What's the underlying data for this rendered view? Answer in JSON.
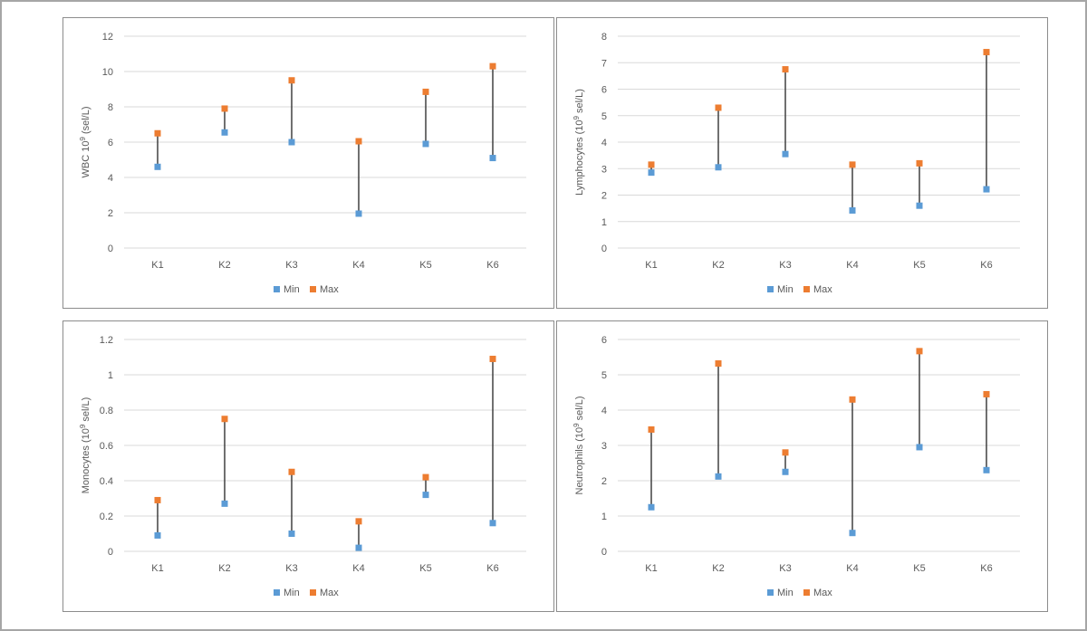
{
  "chart_data": [
    {
      "type": "scatter",
      "ylabel_main": "WBC 10",
      "ylabel_sup": "9",
      "ylabel_tail": " (sel/L)",
      "categories": [
        "K1",
        "K2",
        "K3",
        "K4",
        "K5",
        "K6"
      ],
      "ylim": [
        0,
        12
      ],
      "yticks": [
        "0",
        "2",
        "4",
        "6",
        "8",
        "10",
        "12"
      ],
      "series": [
        {
          "name": "Min",
          "values": [
            4.6,
            6.55,
            6.0,
            1.95,
            5.9,
            5.1
          ],
          "color": "#5b9bd5"
        },
        {
          "name": "Max",
          "values": [
            6.5,
            7.9,
            9.5,
            6.05,
            8.85,
            10.3
          ],
          "color": "#ed7d31"
        }
      ]
    },
    {
      "type": "scatter",
      "ylabel_main": "Lymphocytes (10",
      "ylabel_sup": "9",
      "ylabel_tail": " sel/L)",
      "categories": [
        "K1",
        "K2",
        "K3",
        "K4",
        "K5",
        "K6"
      ],
      "ylim": [
        0,
        8
      ],
      "yticks": [
        "0",
        "1",
        "2",
        "3",
        "4",
        "5",
        "6",
        "7",
        "8"
      ],
      "series": [
        {
          "name": "Min",
          "values": [
            2.85,
            3.05,
            3.55,
            1.42,
            1.6,
            2.22
          ],
          "color": "#5b9bd5"
        },
        {
          "name": "Max",
          "values": [
            3.15,
            5.3,
            6.75,
            3.15,
            3.2,
            7.4
          ],
          "color": "#ed7d31"
        }
      ]
    },
    {
      "type": "scatter",
      "ylabel_main": "Monocytes (10",
      "ylabel_sup": "9",
      "ylabel_tail": " sel/L)",
      "categories": [
        "K1",
        "K2",
        "K3",
        "K4",
        "K5",
        "K6"
      ],
      "ylim": [
        0,
        1.2
      ],
      "yticks": [
        "0",
        "0.2",
        "0.4",
        "0.6",
        "0.8",
        "1",
        "1.2"
      ],
      "series": [
        {
          "name": "Min",
          "values": [
            0.09,
            0.27,
            0.1,
            0.02,
            0.32,
            0.16
          ],
          "color": "#5b9bd5"
        },
        {
          "name": "Max",
          "values": [
            0.29,
            0.75,
            0.45,
            0.17,
            0.42,
            1.09
          ],
          "color": "#ed7d31"
        }
      ]
    },
    {
      "type": "scatter",
      "ylabel_main": "Neutrophils (10",
      "ylabel_sup": "9",
      "ylabel_tail": " sel/L)",
      "categories": [
        "K1",
        "K2",
        "K3",
        "K4",
        "K5",
        "K6"
      ],
      "ylim": [
        0,
        6
      ],
      "yticks": [
        "0",
        "1",
        "2",
        "3",
        "4",
        "5",
        "6"
      ],
      "series": [
        {
          "name": "Min",
          "values": [
            1.25,
            2.12,
            2.25,
            0.52,
            2.95,
            2.3
          ],
          "color": "#5b9bd5"
        },
        {
          "name": "Max",
          "values": [
            3.45,
            5.32,
            2.8,
            4.3,
            5.67,
            4.45
          ],
          "color": "#ed7d31"
        }
      ]
    }
  ]
}
